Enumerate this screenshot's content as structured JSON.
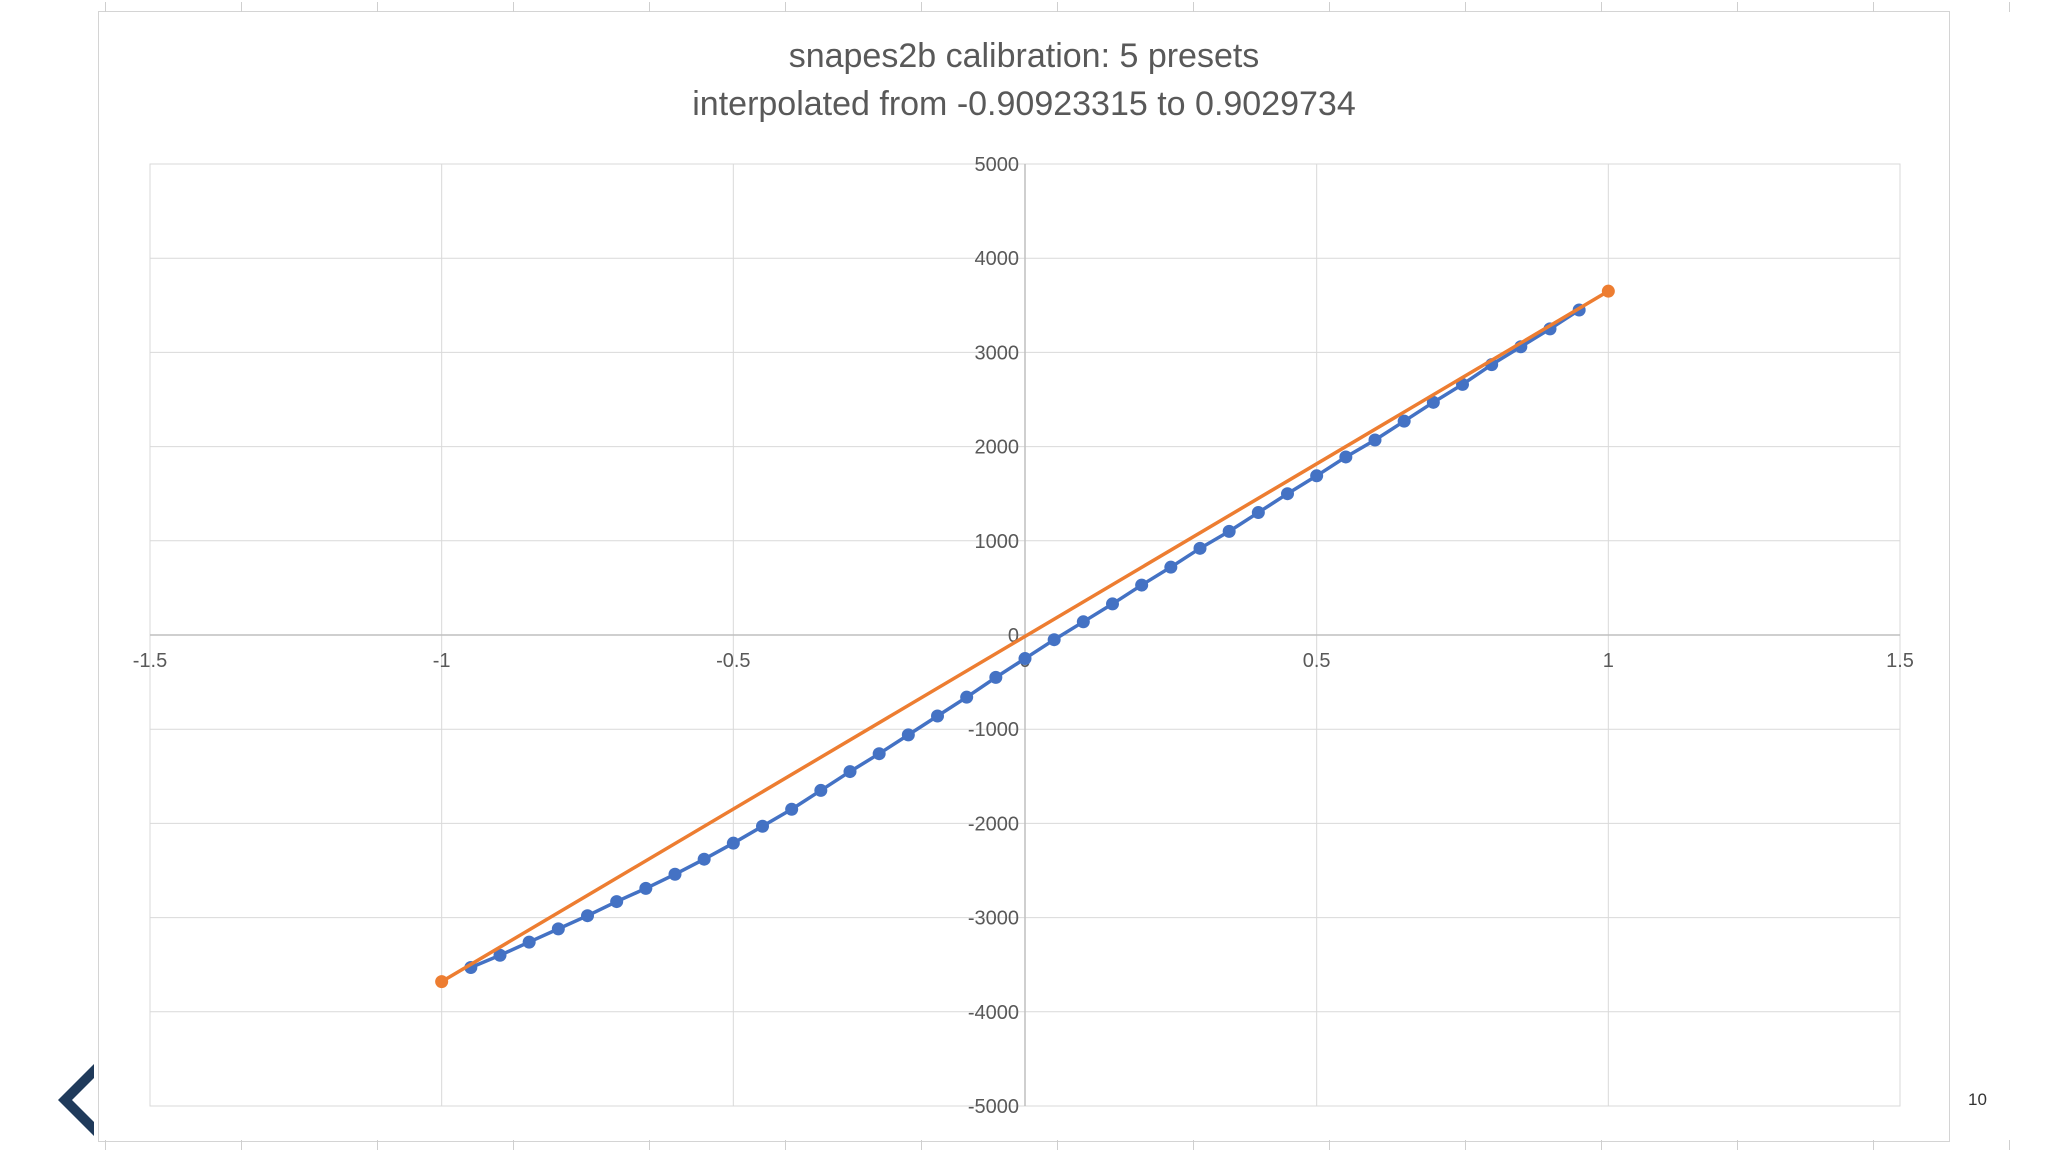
{
  "slide": {
    "page_number": "10",
    "nav_icon": "chevron-left-icon"
  },
  "chart_data": {
    "type": "scatter",
    "title": "snapes2b calibration: 5 presets",
    "subtitle": "interpolated from -0.90923315 to 0.9029734",
    "xlabel": "",
    "ylabel": "",
    "xlim": [
      -1.5,
      1.5
    ],
    "ylim": [
      -5000,
      5000
    ],
    "x_ticks": [
      "-1.5",
      "-1",
      "-0.5",
      "0",
      "0.5",
      "1",
      "1.5"
    ],
    "y_ticks": [
      "5000",
      "4000",
      "3000",
      "2000",
      "1000",
      "0",
      "-1000",
      "-2000",
      "-3000",
      "-4000",
      "-5000"
    ],
    "grid": true,
    "legend": "none",
    "series": [
      {
        "color": "#4472C4",
        "marker": "circle",
        "line": true,
        "points": [
          [
            -0.95,
            -3530
          ],
          [
            -0.9,
            -3400
          ],
          [
            -0.85,
            -3260
          ],
          [
            -0.8,
            -3120
          ],
          [
            -0.75,
            -2980
          ],
          [
            -0.7,
            -2830
          ],
          [
            -0.65,
            -2690
          ],
          [
            -0.6,
            -2540
          ],
          [
            -0.55,
            -2380
          ],
          [
            -0.5,
            -2210
          ],
          [
            -0.45,
            -2030
          ],
          [
            -0.4,
            -1850
          ],
          [
            -0.35,
            -1650
          ],
          [
            -0.3,
            -1450
          ],
          [
            -0.25,
            -1260
          ],
          [
            -0.2,
            -1060
          ],
          [
            -0.15,
            -860
          ],
          [
            -0.1,
            -660
          ],
          [
            -0.05,
            -450
          ],
          [
            0.0,
            -250
          ],
          [
            0.05,
            -50
          ],
          [
            0.1,
            140
          ],
          [
            0.15,
            330
          ],
          [
            0.2,
            530
          ],
          [
            0.25,
            720
          ],
          [
            0.3,
            920
          ],
          [
            0.35,
            1100
          ],
          [
            0.4,
            1300
          ],
          [
            0.45,
            1500
          ],
          [
            0.5,
            1690
          ],
          [
            0.55,
            1890
          ],
          [
            0.6,
            2070
          ],
          [
            0.65,
            2270
          ],
          [
            0.7,
            2470
          ],
          [
            0.75,
            2660
          ],
          [
            0.8,
            2870
          ],
          [
            0.85,
            3060
          ],
          [
            0.9,
            3250
          ],
          [
            0.95,
            3450
          ]
        ]
      },
      {
        "color": "#ED7D31",
        "marker": "circle",
        "line": true,
        "points": [
          [
            -1,
            -3680
          ],
          [
            1,
            3650
          ]
        ]
      }
    ]
  }
}
